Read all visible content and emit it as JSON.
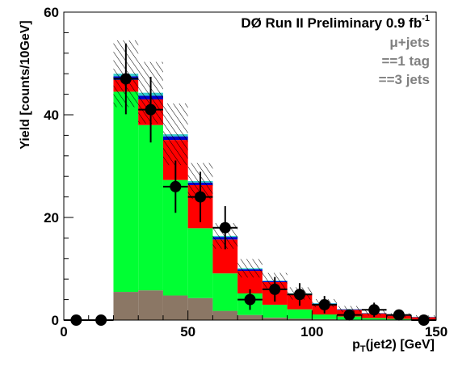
{
  "chart_data": {
    "type": "bar",
    "x_edges": [
      0,
      10,
      20,
      30,
      40,
      50,
      60,
      70,
      80,
      90,
      100,
      110,
      120,
      130,
      140,
      150
    ],
    "xlim": [
      0,
      150
    ],
    "ylim": [
      0,
      60
    ],
    "x_ticks": [
      0,
      50,
      100,
      150
    ],
    "y_ticks": [
      0,
      20,
      40,
      60
    ],
    "x_tick_labels": [
      "0",
      "50",
      "100",
      "150"
    ],
    "y_tick_labels": [
      "0",
      "20",
      "40",
      "60"
    ],
    "xlabel_main": "p",
    "xlabel_sub": "T",
    "xlabel_rest": "(jet2) [GeV]",
    "ylabel": "Yield [counts/10GeV]",
    "annotations": {
      "line1_main": "DØ Run II Preliminary 0.9 fb",
      "line1_sup": "-1",
      "line2": "μ+jets",
      "line3": "==1 tag",
      "line4": "==3 jets"
    },
    "stack_colors": {
      "brown": "#8B7765",
      "green": "#00FF33",
      "red": "#FF0000",
      "blue": "#0000CC",
      "cyan": "#33CCCC",
      "data_marker": "#000000"
    },
    "stacks": [
      {
        "bin": [
          20,
          30
        ],
        "brown": 5.5,
        "green": 39.0,
        "red": 2.3,
        "blue": 0.7,
        "cyan": 0.5,
        "unc": 6.5
      },
      {
        "bin": [
          30,
          40
        ],
        "brown": 5.8,
        "green": 32.2,
        "red": 5.0,
        "blue": 0.7,
        "cyan": 0.6,
        "unc": 6.0
      },
      {
        "bin": [
          40,
          50
        ],
        "brown": 4.8,
        "green": 22.5,
        "red": 7.8,
        "blue": 0.7,
        "cyan": 0.4,
        "unc": 6.0
      },
      {
        "bin": [
          50,
          60
        ],
        "brown": 4.3,
        "green": 13.6,
        "red": 8.4,
        "blue": 0.5,
        "cyan": 0.3,
        "unc": 3.5
      },
      {
        "bin": [
          60,
          70
        ],
        "brown": 1.8,
        "green": 7.3,
        "red": 6.6,
        "blue": 0.5,
        "cyan": 0.2,
        "unc": 2.5
      },
      {
        "bin": [
          70,
          80
        ],
        "brown": 1.0,
        "green": 4.2,
        "red": 4.4,
        "blue": 0.3,
        "cyan": 0.2,
        "unc": 1.8
      },
      {
        "bin": [
          80,
          90
        ],
        "brown": 0.5,
        "green": 2.5,
        "red": 4.4,
        "blue": 0.2,
        "cyan": 0.1,
        "unc": 1.5
      },
      {
        "bin": [
          90,
          100
        ],
        "brown": 0.3,
        "green": 1.8,
        "red": 2.8,
        "blue": 0.2,
        "cyan": 0.1,
        "unc": 1.2
      },
      {
        "bin": [
          100,
          110
        ],
        "brown": 0.2,
        "green": 0.9,
        "red": 2.0,
        "blue": 0.1,
        "cyan": 0.1,
        "unc": 0.8
      },
      {
        "bin": [
          110,
          120
        ],
        "brown": 0.1,
        "green": 0.6,
        "red": 1.3,
        "blue": 0.1,
        "cyan": 0.05,
        "unc": 0.6
      },
      {
        "bin": [
          120,
          130
        ],
        "brown": 0.1,
        "green": 0.3,
        "red": 0.9,
        "blue": 0.05,
        "cyan": 0.05,
        "unc": 0.5
      },
      {
        "bin": [
          130,
          140
        ],
        "brown": 0.05,
        "green": 0.2,
        "red": 0.6,
        "blue": 0.05,
        "cyan": 0.05,
        "unc": 0.4
      },
      {
        "bin": [
          140,
          150
        ],
        "brown": 0.05,
        "green": 0.1,
        "red": 0.4,
        "blue": 0.05,
        "cyan": 0.05,
        "unc": 0.3
      }
    ],
    "data_points": [
      {
        "x": 25,
        "y": 47,
        "yerr": 6.9
      },
      {
        "x": 35,
        "y": 41,
        "yerr": 6.4
      },
      {
        "x": 45,
        "y": 26,
        "yerr": 5.1
      },
      {
        "x": 55,
        "y": 24,
        "yerr": 4.9
      },
      {
        "x": 65,
        "y": 18,
        "yerr": 4.2
      },
      {
        "x": 75,
        "y": 4,
        "yerr": 2.0
      },
      {
        "x": 85,
        "y": 6,
        "yerr": 2.4
      },
      {
        "x": 95,
        "y": 5,
        "yerr": 2.2
      },
      {
        "x": 105,
        "y": 3,
        "yerr": 1.7
      },
      {
        "x": 115,
        "y": 1,
        "yerr": 1.0
      },
      {
        "x": 125,
        "y": 2,
        "yerr": 1.4
      },
      {
        "x": 135,
        "y": 1,
        "yerr": 1.0
      },
      {
        "x": 145,
        "y": 0,
        "yerr": 0
      },
      {
        "x": 5,
        "y": 0,
        "yerr": 0
      },
      {
        "x": 15,
        "y": 0,
        "yerr": 0
      }
    ]
  }
}
